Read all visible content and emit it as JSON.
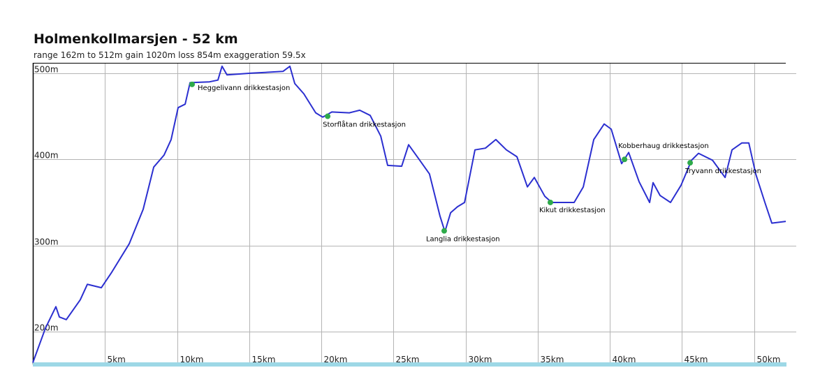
{
  "chart_data": {
    "type": "line",
    "title": "Holmenkollmarsjen - 52 km",
    "subtitle": "range 162m to 512m  gain 1020m  loss 854m  exaggeration 59.5x",
    "xlabel": "",
    "ylabel": "",
    "xlim": [
      0,
      52.2
    ],
    "ylim": [
      162,
      512
    ],
    "grid": true,
    "x_ticks": [
      {
        "v": 5,
        "label": "5km"
      },
      {
        "v": 10,
        "label": "10km"
      },
      {
        "v": 15,
        "label": "15km"
      },
      {
        "v": 20,
        "label": "20km"
      },
      {
        "v": 25,
        "label": "25km"
      },
      {
        "v": 30,
        "label": "30km"
      },
      {
        "v": 35,
        "label": "35km"
      },
      {
        "v": 40,
        "label": "40km"
      },
      {
        "v": 45,
        "label": "45km"
      },
      {
        "v": 50,
        "label": "50km"
      }
    ],
    "y_ticks": [
      {
        "v": 200,
        "label": "200m"
      },
      {
        "v": 300,
        "label": "300m"
      },
      {
        "v": 400,
        "label": "400m"
      },
      {
        "v": 500,
        "label": "500m"
      }
    ],
    "series": [
      {
        "name": "elevation",
        "color": "#2b2fd0",
        "points": [
          [
            0,
            164
          ],
          [
            0.87,
            204
          ],
          [
            1.6,
            229
          ],
          [
            1.84,
            217
          ],
          [
            2.32,
            214
          ],
          [
            3.29,
            237
          ],
          [
            3.78,
            255
          ],
          [
            4.75,
            251
          ],
          [
            5.47,
            269
          ],
          [
            6.68,
            302
          ],
          [
            7.65,
            342
          ],
          [
            8.38,
            391
          ],
          [
            9.1,
            405
          ],
          [
            9.59,
            423
          ],
          [
            10.07,
            460
          ],
          [
            10.56,
            464
          ],
          [
            10.9,
            489
          ],
          [
            12.25,
            490
          ],
          [
            12.83,
            492
          ],
          [
            13.12,
            508
          ],
          [
            13.46,
            498
          ],
          [
            15.16,
            500
          ],
          [
            17.34,
            502
          ],
          [
            17.82,
            508
          ],
          [
            18.16,
            488
          ],
          [
            18.79,
            476
          ],
          [
            19.61,
            454
          ],
          [
            20.1,
            449
          ],
          [
            20.73,
            455
          ],
          [
            21.94,
            454
          ],
          [
            22.66,
            457
          ],
          [
            23.39,
            451
          ],
          [
            24.12,
            427
          ],
          [
            24.6,
            393
          ],
          [
            25.57,
            392
          ],
          [
            26.05,
            417
          ],
          [
            26.78,
            400
          ],
          [
            27.5,
            383
          ],
          [
            28.23,
            334
          ],
          [
            28.57,
            316
          ],
          [
            28.96,
            338
          ],
          [
            29.44,
            345
          ],
          [
            29.93,
            350
          ],
          [
            30.65,
            411
          ],
          [
            31.38,
            413
          ],
          [
            32.1,
            423
          ],
          [
            32.83,
            411
          ],
          [
            33.56,
            403
          ],
          [
            34.29,
            368
          ],
          [
            34.77,
            379
          ],
          [
            35.5,
            357
          ],
          [
            35.98,
            350
          ],
          [
            37.53,
            350
          ],
          [
            38.16,
            368
          ],
          [
            38.89,
            423
          ],
          [
            39.61,
            441
          ],
          [
            40.1,
            435
          ],
          [
            40.82,
            395
          ],
          [
            41.31,
            408
          ],
          [
            42.03,
            374
          ],
          [
            42.76,
            350
          ],
          [
            43.0,
            373
          ],
          [
            43.49,
            358
          ],
          [
            44.21,
            350
          ],
          [
            44.94,
            370
          ],
          [
            45.67,
            399
          ],
          [
            46.15,
            407
          ],
          [
            47.12,
            399
          ],
          [
            47.99,
            379
          ],
          [
            48.47,
            411
          ],
          [
            49.15,
            419
          ],
          [
            49.64,
            419
          ],
          [
            50.12,
            383
          ],
          [
            50.75,
            350
          ],
          [
            51.23,
            326
          ],
          [
            52.2,
            328
          ]
        ]
      }
    ],
    "annotations": [
      {
        "label": "Heggelivann drikkestasjon",
        "x": 11.04,
        "y": 487,
        "placement": "right"
      },
      {
        "label": "Storflåtan drikkestasjon",
        "x": 20.44,
        "y": 450,
        "placement": "below"
      },
      {
        "label": "Langlia drikkestasjon",
        "x": 28.52,
        "y": 317,
        "placement": "below"
      },
      {
        "label": "Kikut drikkestasjon",
        "x": 35.88,
        "y": 350,
        "placement": "below"
      },
      {
        "label": "Kobberhaug drikkestasjon",
        "x": 41.02,
        "y": 400,
        "placement": "above"
      },
      {
        "label": "Tryvann drikkestasjon",
        "x": 45.57,
        "y": 396,
        "placement": "below"
      }
    ],
    "marker_color": "#2eaa4a"
  }
}
